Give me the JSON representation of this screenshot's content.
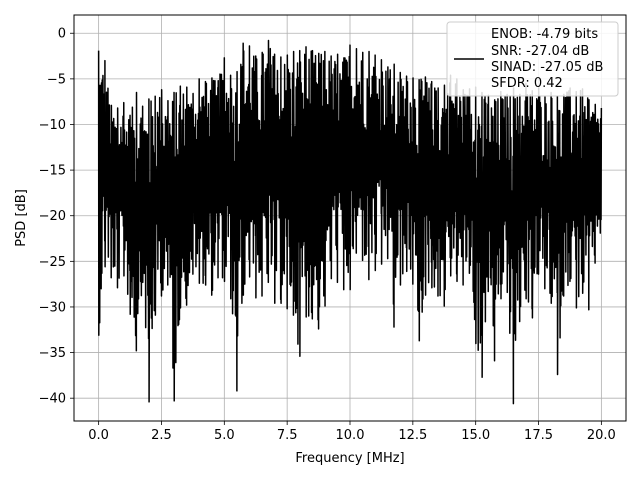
{
  "chart_data": {
    "type": "line",
    "title": "",
    "xlabel": "Frequency [MHz]",
    "ylabel": "PSD [dB]",
    "xlim": [
      -0.98,
      20.98
    ],
    "ylim": [
      -42.5,
      2.0
    ],
    "x_ticks": [
      0.0,
      2.5,
      5.0,
      7.5,
      10.0,
      12.5,
      15.0,
      17.5,
      20.0
    ],
    "x_tick_labels": [
      "0.0",
      "2.5",
      "5.0",
      "7.5",
      "10.0",
      "12.5",
      "15.0",
      "17.5",
      "20.0"
    ],
    "y_ticks": [
      0,
      -5,
      -10,
      -15,
      -20,
      -25,
      -30,
      -35,
      -40
    ],
    "y_tick_labels": [
      "0",
      "−5",
      "−10",
      "−15",
      "−20",
      "−25",
      "−30",
      "−35",
      "−40"
    ],
    "grid": true,
    "legend_position": "top-right",
    "legend_lines": [
      "ENOB: -4.79 bits",
      "SNR: -27.04 dB",
      "SINAD: -27.05 dB",
      "SFDR: 0.42"
    ],
    "series": [
      {
        "color": "#000000",
        "x": [
          0.0,
          0.25,
          0.5,
          0.75,
          1.0,
          1.25,
          1.5,
          1.75,
          2.0,
          2.25,
          2.5,
          2.75,
          3.0,
          3.25,
          3.5,
          3.75,
          4.0,
          4.25,
          4.5,
          4.75,
          5.0,
          5.25,
          5.5,
          5.75,
          6.0,
          6.25,
          6.5,
          6.75,
          7.0,
          7.25,
          7.5,
          7.75,
          8.0,
          8.25,
          8.5,
          8.75,
          9.0,
          9.25,
          9.5,
          9.75,
          10.0,
          10.25,
          10.5,
          10.75,
          11.0,
          11.25,
          11.5,
          11.75,
          12.0,
          12.25,
          12.5,
          12.75,
          13.0,
          13.25,
          13.5,
          13.75,
          14.0,
          14.25,
          14.5,
          14.75,
          15.0,
          15.25,
          15.5,
          15.75,
          16.0,
          16.25,
          16.5,
          16.75,
          17.0,
          17.25,
          17.5,
          17.75,
          18.0,
          18.25,
          18.5,
          18.75,
          19.0,
          19.25,
          19.5,
          19.75,
          20.0
        ],
        "upper": [
          -1.9,
          -3.0,
          -7.9,
          -8.2,
          -7.6,
          -9.0,
          -6.5,
          -8.0,
          -7.2,
          -6.9,
          -6.2,
          -7.4,
          -6.5,
          -5.8,
          -5.9,
          -6.6,
          -5.0,
          -5.3,
          -4.9,
          -5.2,
          -2.7,
          -4.6,
          -4.2,
          -1.1,
          -1.4,
          -2.5,
          -2.1,
          -0.8,
          -2.3,
          -2.6,
          -2.4,
          -2.0,
          -1.9,
          -1.5,
          -1.9,
          -2.2,
          -2.0,
          -2.5,
          -2.3,
          -2.7,
          -1.3,
          -1.7,
          -2.1,
          -2.0,
          -2.4,
          -2.9,
          -3.7,
          -3.4,
          -4.3,
          -4.7,
          -4.9,
          -5.1,
          -4.8,
          -5.3,
          -6.0,
          -5.7,
          -4.6,
          -5.0,
          -6.2,
          -6.1,
          -5.9,
          -6.5,
          -6.8,
          -7.3,
          -6.4,
          -6.7,
          -6.0,
          -6.7,
          -5.5,
          -6.3,
          -6.0,
          -7.0,
          -6.5,
          -6.9,
          -6.7,
          -6.0,
          -6.4,
          -6.1,
          -7.3,
          -7.8,
          -8.2
        ],
        "lower": [
          -33.1,
          -25.6,
          -26.8,
          -27.9,
          -26.6,
          -30.8,
          -34.8,
          -27.3,
          -40.4,
          -30.9,
          -28.8,
          -27.6,
          -40.3,
          -30.1,
          -29.8,
          -26.4,
          -27.4,
          -27.6,
          -28.7,
          -26.8,
          -27.2,
          -29.1,
          -39.2,
          -28.7,
          -26.7,
          -29.0,
          -28.8,
          -27.3,
          -29.6,
          -29.6,
          -30.2,
          -30.9,
          -35.4,
          -31.1,
          -31.3,
          -32.4,
          -29.9,
          -26.9,
          -27.3,
          -28.1,
          -28.1,
          -24.1,
          -24.9,
          -27.0,
          -26.0,
          -25.3,
          -24.7,
          -32.2,
          -27.6,
          -26.1,
          -27.5,
          -33.7,
          -28.7,
          -27.9,
          -28.8,
          -29.9,
          -26.6,
          -27.2,
          -27.6,
          -26.3,
          -34.0,
          -37.7,
          -28.3,
          -35.9,
          -29.1,
          -28.4,
          -40.6,
          -31.6,
          -29.1,
          -31.2,
          -26.4,
          -28.0,
          -29.6,
          -37.4,
          -28.8,
          -27.2,
          -30.1,
          -28.5,
          -30.3,
          -25.2,
          -22.3
        ]
      }
    ]
  }
}
